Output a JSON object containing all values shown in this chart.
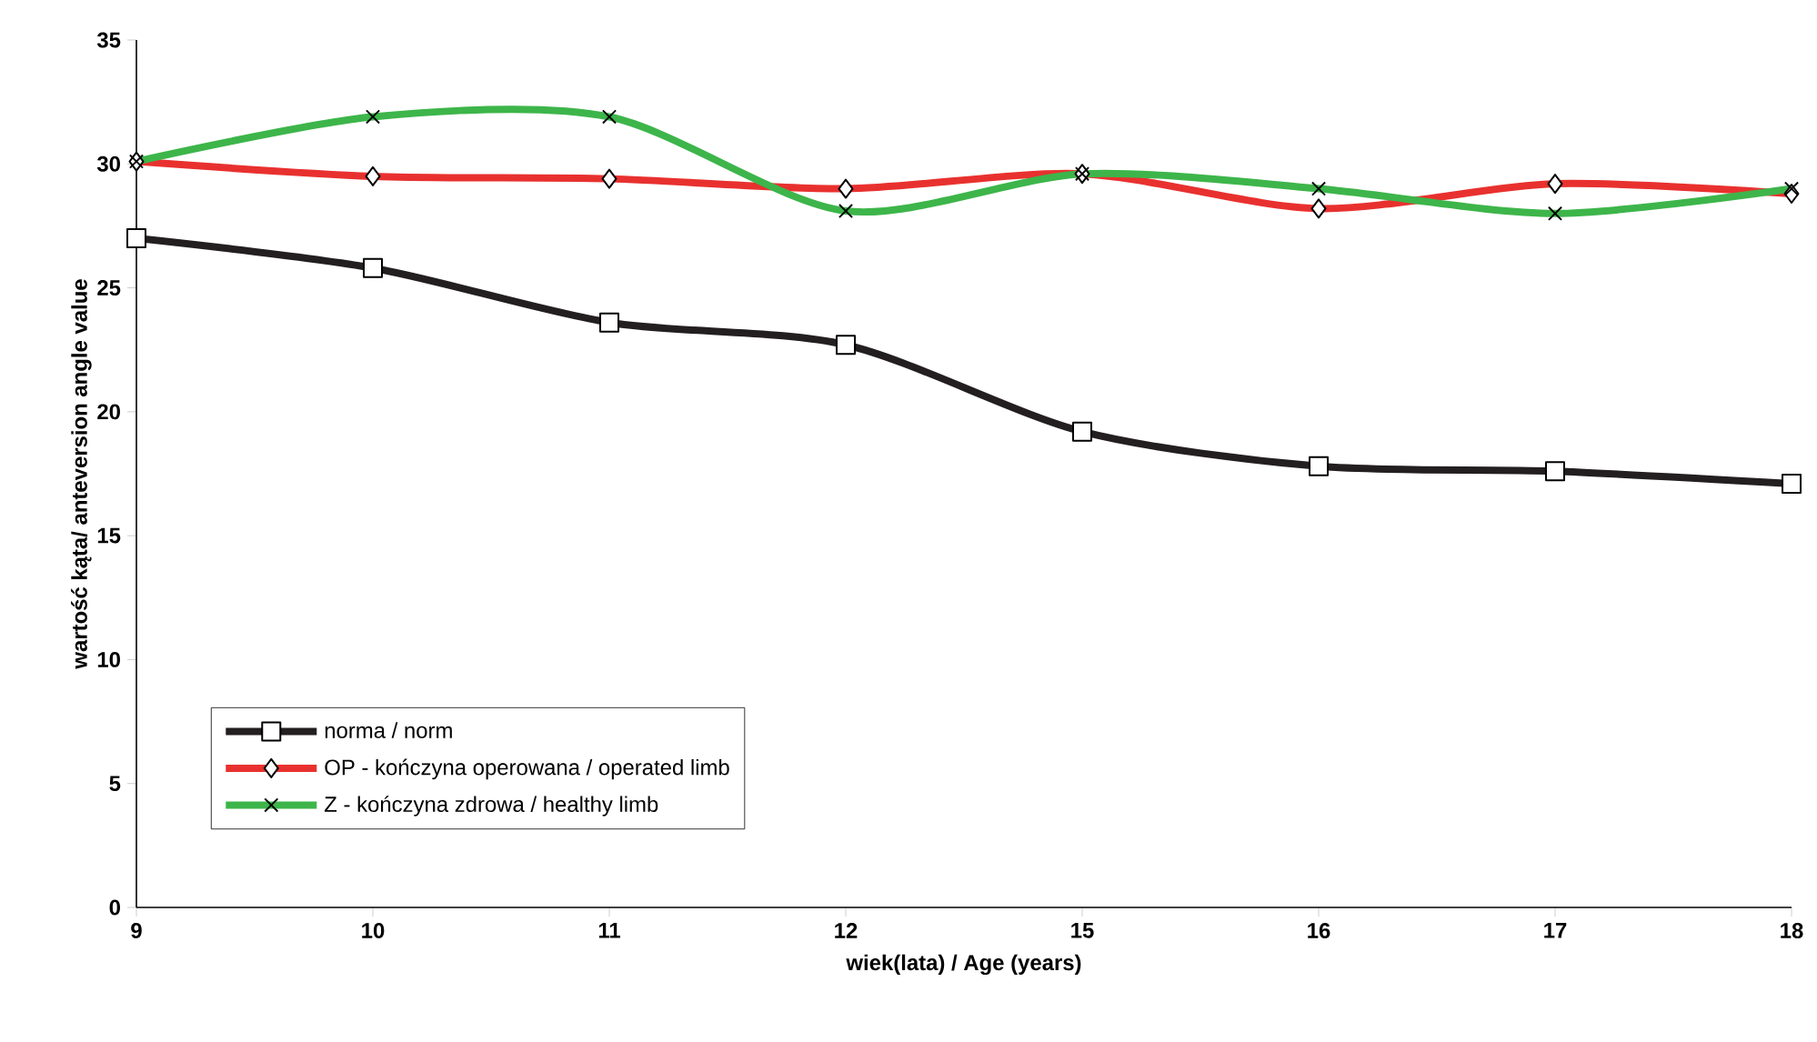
{
  "chart_data": {
    "type": "line",
    "xlabel": "wiek(lata) / Age (years)",
    "ylabel": "wartość kąta/ anteversion angle value",
    "categories": [
      "9",
      "10",
      "11",
      "12",
      "15",
      "16",
      "17",
      "18"
    ],
    "series": [
      {
        "name": "norma / norm",
        "color": "#231f20",
        "marker": "square",
        "values": [
          27.0,
          25.8,
          23.6,
          22.7,
          19.2,
          17.8,
          17.6,
          17.1
        ]
      },
      {
        "name": "OP - kończyna operowana / operated limb",
        "color": "#e8312f",
        "marker": "diamond",
        "values": [
          30.1,
          29.5,
          29.4,
          29.0,
          29.6,
          28.2,
          29.2,
          28.8
        ]
      },
      {
        "name": "Z - kończyna zdrowa / healthy limb",
        "color": "#3db54a",
        "marker": "cross",
        "values": [
          30.1,
          31.9,
          31.9,
          28.1,
          29.6,
          29.0,
          28.0,
          29.0
        ]
      }
    ],
    "ylim": [
      0,
      35
    ],
    "yticks": [
      0,
      5,
      10,
      15,
      20,
      25,
      30,
      35
    ],
    "legend": "bottom left",
    "grid": false
  }
}
